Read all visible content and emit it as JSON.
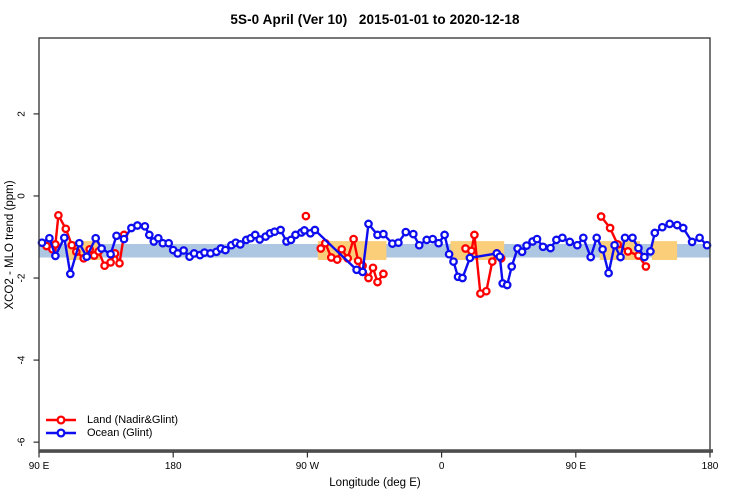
{
  "title": "5S-0 April (Ver 10)   2015-01-01 to 2020-12-18",
  "chart_data": {
    "type": "line",
    "title": "5S-0 April (Ver 10)   2015-01-01 to 2020-12-18",
    "xlabel": "Longitude (deg E)",
    "ylabel": "XCO2 - MLO trend (ppm)",
    "grid": false,
    "legend_position": "bottom-left",
    "x_domain": [
      90,
      540
    ],
    "y_domain": [
      -6.24,
      3.85
    ],
    "x_ticks": [
      {
        "value": 90,
        "label": "90 E"
      },
      {
        "value": 180,
        "label": "180"
      },
      {
        "value": 270,
        "label": "90 W"
      },
      {
        "value": 360,
        "label": "0"
      },
      {
        "value": 450,
        "label": "90 E"
      },
      {
        "value": 540,
        "label": "180"
      }
    ],
    "y_ticks": [
      {
        "value": 2,
        "label": "2"
      },
      {
        "value": 0,
        "label": "0"
      },
      {
        "value": -2,
        "label": "-2"
      },
      {
        "value": -4,
        "label": "-4"
      },
      {
        "value": -6,
        "label": "-6"
      }
    ],
    "colors": {
      "land": "#ff0000",
      "ocean": "#0d0df0",
      "reference_band": "#adc6e2",
      "highlight_band": "#fbce7a",
      "axis_heavy": "#4d4d4d"
    },
    "bands": [
      {
        "name": "reference-band-ocean",
        "color": "#adc6e2",
        "x_range": [
          90,
          540
        ],
        "y_range": [
          -1.5,
          -1.17
        ]
      },
      {
        "name": "highlight-band-1",
        "color": "#fbce7a",
        "x_range": [
          109,
          131
        ],
        "y_range": [
          -1.56,
          -1.1
        ]
      },
      {
        "name": "highlight-band-2",
        "color": "#fbce7a",
        "x_range": [
          277,
          323
        ],
        "y_range": [
          -1.56,
          -1.1
        ]
      },
      {
        "name": "highlight-band-3",
        "color": "#fbce7a",
        "x_range": [
          366,
          402
        ],
        "y_range": [
          -1.56,
          -1.1
        ]
      },
      {
        "name": "highlight-band-4",
        "color": "#fbce7a",
        "x_range": [
          466,
          493
        ],
        "y_range": [
          -1.56,
          -1.1
        ]
      },
      {
        "name": "highlight-band-5",
        "color": "#fbce7a",
        "x_range": [
          501,
          518
        ],
        "y_range": [
          -1.56,
          -1.1
        ]
      }
    ],
    "series": [
      {
        "name": "Land (Nadir&Glint)",
        "color": "#ff0000",
        "marker": "open-circle",
        "segments": [
          [
            [
              95,
              -1.22
            ],
            [
              99,
              -1.3
            ],
            [
              101,
              -1.18
            ],
            [
              103,
              -0.47
            ],
            [
              108,
              -0.8
            ],
            [
              112,
              -1.2
            ],
            [
              115,
              -1.36
            ],
            [
              120,
              -1.52
            ],
            [
              124,
              -1.3
            ],
            [
              127,
              -1.45
            ],
            [
              130,
              -1.35
            ],
            [
              134,
              -1.7
            ],
            [
              138,
              -1.62
            ],
            [
              141,
              -1.4
            ],
            [
              144,
              -1.64
            ],
            [
              147,
              -0.95
            ]
          ],
          [
            [
              269,
              -0.49
            ]
          ],
          [
            [
              279,
              -1.28
            ],
            [
              282,
              -1.15
            ],
            [
              286,
              -1.5
            ],
            [
              290,
              -1.55
            ],
            [
              293,
              -1.3
            ],
            [
              297,
              -1.52
            ],
            [
              301,
              -1.05
            ],
            [
              304,
              -1.58
            ],
            [
              307,
              -1.7
            ],
            [
              311,
              -2.0
            ],
            [
              314,
              -1.75
            ],
            [
              317,
              -2.1
            ],
            [
              321,
              -1.9
            ]
          ],
          [
            [
              376,
              -1.28
            ],
            [
              380,
              -1.34
            ],
            [
              382,
              -0.95
            ],
            [
              386,
              -2.38
            ],
            [
              390,
              -2.32
            ],
            [
              394,
              -1.6
            ],
            [
              397,
              -1.4
            ],
            [
              400,
              -1.52
            ]
          ],
          [
            [
              467,
              -0.5
            ],
            [
              473,
              -0.78
            ],
            [
              478,
              -1.18
            ],
            [
              485,
              -1.35
            ],
            [
              492,
              -1.45
            ],
            [
              497,
              -1.72
            ]
          ]
        ]
      },
      {
        "name": "Ocean (Glint)",
        "color": "#0d0df0",
        "marker": "open-circle",
        "segments": [
          [
            [
              92,
              -1.14
            ],
            [
              97,
              -1.03
            ],
            [
              101,
              -1.46
            ],
            [
              107,
              -1.02
            ],
            [
              111,
              -1.9
            ],
            [
              117,
              -1.15
            ],
            [
              122,
              -1.48
            ],
            [
              128,
              -1.03
            ],
            [
              132,
              -1.28
            ],
            [
              138,
              -1.42
            ],
            [
              142,
              -0.97
            ],
            [
              147,
              -1.05
            ],
            [
              152,
              -0.78
            ],
            [
              156,
              -0.72
            ],
            [
              161,
              -0.74
            ],
            [
              164,
              -0.95
            ],
            [
              167,
              -1.11
            ],
            [
              170,
              -1.03
            ],
            [
              173,
              -1.15
            ],
            [
              177,
              -1.15
            ],
            [
              180,
              -1.32
            ],
            [
              183,
              -1.4
            ],
            [
              187,
              -1.33
            ],
            [
              191,
              -1.48
            ],
            [
              194,
              -1.4
            ],
            [
              198,
              -1.44
            ],
            [
              201,
              -1.38
            ],
            [
              205,
              -1.4
            ],
            [
              209,
              -1.36
            ],
            [
              212,
              -1.28
            ],
            [
              215,
              -1.32
            ],
            [
              219,
              -1.2
            ],
            [
              222,
              -1.14
            ],
            [
              225,
              -1.18
            ],
            [
              229,
              -1.07
            ],
            [
              232,
              -1.03
            ],
            [
              235,
              -0.95
            ],
            [
              238,
              -1.06
            ],
            [
              242,
              -0.99
            ],
            [
              245,
              -0.91
            ],
            [
              248,
              -0.87
            ],
            [
              252,
              -0.83
            ],
            [
              256,
              -1.11
            ],
            [
              259,
              -1.07
            ],
            [
              262,
              -0.95
            ],
            [
              266,
              -0.89
            ],
            [
              268,
              -0.84
            ],
            [
              272,
              -0.91
            ],
            [
              275,
              -0.83
            ],
            [
              303,
              -1.8
            ],
            [
              307,
              -1.85
            ],
            [
              311,
              -0.68
            ],
            [
              317,
              -0.95
            ],
            [
              321,
              -0.93
            ],
            [
              327,
              -1.16
            ],
            [
              331,
              -1.14
            ],
            [
              336,
              -0.88
            ],
            [
              341,
              -0.93
            ],
            [
              345,
              -1.2
            ],
            [
              350,
              -1.07
            ],
            [
              354,
              -1.05
            ],
            [
              358,
              -1.15
            ],
            [
              362,
              -0.95
            ],
            [
              365,
              -1.42
            ],
            [
              368,
              -1.6
            ],
            [
              371,
              -1.97
            ],
            [
              374,
              -2.0
            ],
            [
              379,
              -1.51
            ],
            [
              397,
              -1.4
            ],
            [
              399,
              -1.48
            ],
            [
              401,
              -2.13
            ],
            [
              404,
              -2.17
            ],
            [
              407,
              -1.72
            ],
            [
              411,
              -1.28
            ],
            [
              414,
              -1.36
            ],
            [
              417,
              -1.21
            ],
            [
              421,
              -1.11
            ],
            [
              424,
              -1.05
            ],
            [
              428,
              -1.24
            ],
            [
              433,
              -1.27
            ],
            [
              437,
              -1.07
            ],
            [
              441,
              -1.02
            ],
            [
              446,
              -1.12
            ],
            [
              451,
              -1.2
            ],
            [
              455,
              -1.02
            ],
            [
              460,
              -1.49
            ],
            [
              464,
              -1.02
            ],
            [
              468,
              -1.3
            ],
            [
              472,
              -1.88
            ],
            [
              476,
              -1.2
            ],
            [
              480,
              -1.49
            ],
            [
              483,
              -1.02
            ],
            [
              488,
              -1.02
            ],
            [
              492,
              -1.27
            ],
            [
              496,
              -1.49
            ],
            [
              500,
              -1.35
            ],
            [
              503,
              -0.9
            ],
            [
              508,
              -0.76
            ],
            [
              513,
              -0.68
            ],
            [
              518,
              -0.71
            ],
            [
              522,
              -0.78
            ],
            [
              528,
              -1.12
            ],
            [
              533,
              -1.02
            ],
            [
              538,
              -1.2
            ]
          ]
        ]
      }
    ]
  }
}
